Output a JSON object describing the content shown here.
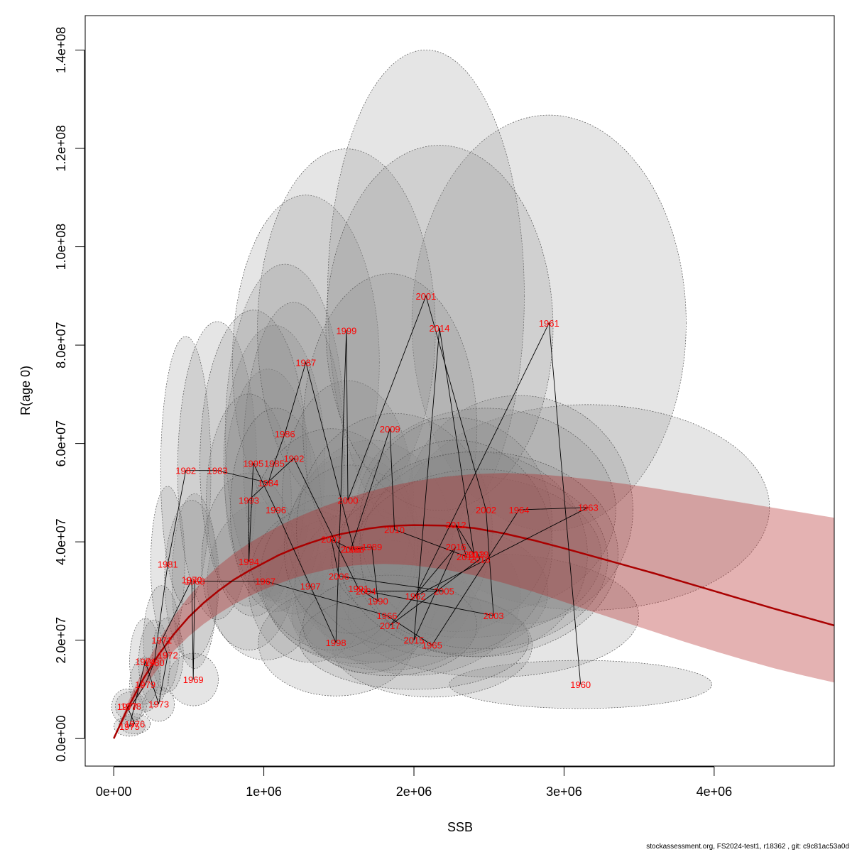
{
  "chart_data": {
    "type": "scatter",
    "xlabel": "SSB",
    "ylabel": "R(age 0)",
    "xlim": [
      -190000,
      4800000
    ],
    "ylim": [
      -5600000,
      147000000
    ],
    "x_ticks": [
      0,
      1000000,
      2000000,
      3000000,
      4000000
    ],
    "x_tick_labels": [
      "0e+00",
      "1e+06",
      "2e+06",
      "3e+06",
      "4e+06"
    ],
    "y_ticks": [
      0,
      20000000,
      40000000,
      60000000,
      80000000,
      100000000,
      120000000,
      140000000
    ],
    "y_tick_labels": [
      "0.0e+00",
      "2.0e+07",
      "4.0e+07",
      "6.0e+07",
      "8.0e+07",
      "1.0e+08",
      "1.2e+08",
      "1.4e+08"
    ],
    "colors": {
      "ellipse_fill": "#888888",
      "curve": "#aa0000",
      "band": "#b22222",
      "labels": "#ff0000",
      "path": "#000000"
    },
    "fitted_curve": {
      "x": [
        0,
        100000,
        200000,
        300000,
        400000,
        500000,
        600000,
        700000,
        800000,
        900000,
        1000000,
        1100000,
        1200000,
        1300000,
        1400000,
        1500000,
        1600000,
        1700000,
        1800000,
        1900000,
        2000000,
        2200000,
        2400000,
        2600000,
        2800000,
        3000000,
        3200000,
        3400000,
        3600000,
        3800000,
        4000000,
        4200000,
        4400000,
        4600000,
        4800000
      ],
      "y": [
        0,
        6600000,
        12300000,
        17100000,
        21200000,
        24700000,
        27600000,
        30100000,
        32300000,
        34100000,
        35700000,
        37300000,
        38600000,
        39700000,
        40700000,
        41500000,
        42100000,
        42700000,
        43100000,
        43300000,
        43400000,
        43300000,
        42800000,
        41700000,
        40300000,
        38700000,
        37000000,
        35300000,
        33600000,
        31800000,
        30000000,
        28200000,
        26400000,
        24700000,
        23000000
      ],
      "lower": [
        0,
        5500000,
        10300000,
        14400000,
        17800000,
        20800000,
        23300000,
        25400000,
        27300000,
        28900000,
        30300000,
        31500000,
        32600000,
        33500000,
        34200000,
        34800000,
        35200000,
        35400000,
        35500000,
        35400000,
        35200000,
        34400000,
        33200000,
        31600000,
        29800000,
        27800000,
        25700000,
        23700000,
        21700000,
        19700000,
        17800000,
        16000000,
        14300000,
        12800000,
        11400000
      ],
      "upper": [
        0,
        7700000,
        14300000,
        19900000,
        24800000,
        28900000,
        32300000,
        35200000,
        37600000,
        39700000,
        41500000,
        43200000,
        44700000,
        46000000,
        47200000,
        48300000,
        49300000,
        50200000,
        51000000,
        51700000,
        52300000,
        53200000,
        53800000,
        54000000,
        53800000,
        53300000,
        52600000,
        51800000,
        50900000,
        49900000,
        48900000,
        47900000,
        46900000,
        45900000,
        44900000
      ]
    },
    "points": [
      {
        "year": "1960",
        "x": 3110000,
        "y": 11000000
      },
      {
        "year": "1961",
        "x": 2900000,
        "y": 84500000
      },
      {
        "year": "1962",
        "x": 2010000,
        "y": 29000000
      },
      {
        "year": "1963",
        "x": 3160000,
        "y": 47000000
      },
      {
        "year": "1964",
        "x": 2700000,
        "y": 46500000
      },
      {
        "year": "1965",
        "x": 2120000,
        "y": 19000000
      },
      {
        "year": "1966",
        "x": 1820000,
        "y": 25000000
      },
      {
        "year": "1967",
        "x": 1010000,
        "y": 32000000
      },
      {
        "year": "1968",
        "x": 540000,
        "y": 32000000
      },
      {
        "year": "1969",
        "x": 530000,
        "y": 12000000
      },
      {
        "year": "1970",
        "x": 520000,
        "y": 32300000
      },
      {
        "year": "1971",
        "x": 320000,
        "y": 20000000
      },
      {
        "year": "1972",
        "x": 360000,
        "y": 17000000
      },
      {
        "year": "1973",
        "x": 300000,
        "y": 7000000
      },
      {
        "year": "1974",
        "x": 210000,
        "y": 15700000
      },
      {
        "year": "1975",
        "x": 105000,
        "y": 2500000
      },
      {
        "year": "1976",
        "x": 140000,
        "y": 3000000
      },
      {
        "year": "1977",
        "x": 90000,
        "y": 6500000
      },
      {
        "year": "1978",
        "x": 115000,
        "y": 6600000
      },
      {
        "year": "1979",
        "x": 210000,
        "y": 11000000
      },
      {
        "year": "1980",
        "x": 270000,
        "y": 15500000
      },
      {
        "year": "1981",
        "x": 360000,
        "y": 35500000
      },
      {
        "year": "1982",
        "x": 480000,
        "y": 54500000
      },
      {
        "year": "1983",
        "x": 690000,
        "y": 54500000
      },
      {
        "year": "1984",
        "x": 1030000,
        "y": 52000000
      },
      {
        "year": "1985",
        "x": 1070000,
        "y": 56000000
      },
      {
        "year": "1986",
        "x": 1140000,
        "y": 62000000
      },
      {
        "year": "1987",
        "x": 1280000,
        "y": 76500000
      },
      {
        "year": "1988",
        "x": 1600000,
        "y": 38500000
      },
      {
        "year": "1989",
        "x": 1720000,
        "y": 39000000
      },
      {
        "year": "1990",
        "x": 1760000,
        "y": 28000000
      },
      {
        "year": "1991",
        "x": 1630000,
        "y": 30500000
      },
      {
        "year": "1992",
        "x": 1200000,
        "y": 57000000
      },
      {
        "year": "1993",
        "x": 900000,
        "y": 48500000
      },
      {
        "year": "1994",
        "x": 900000,
        "y": 36000000
      },
      {
        "year": "1995",
        "x": 930000,
        "y": 56000000
      },
      {
        "year": "1996",
        "x": 1080000,
        "y": 46500000
      },
      {
        "year": "1997",
        "x": 1310000,
        "y": 31000000
      },
      {
        "year": "1998",
        "x": 1480000,
        "y": 19500000
      },
      {
        "year": "1999",
        "x": 1550000,
        "y": 83000000
      },
      {
        "year": "2000",
        "x": 1560000,
        "y": 48500000
      },
      {
        "year": "2001",
        "x": 2080000,
        "y": 90000000
      },
      {
        "year": "2002",
        "x": 2480000,
        "y": 46500000
      },
      {
        "year": "2003",
        "x": 2530000,
        "y": 25000000
      },
      {
        "year": "2004",
        "x": 1680000,
        "y": 30000000
      },
      {
        "year": "2005",
        "x": 2200000,
        "y": 30000000
      },
      {
        "year": "2006",
        "x": 1500000,
        "y": 33000000
      },
      {
        "year": "2007",
        "x": 1450000,
        "y": 40500000
      },
      {
        "year": "2008",
        "x": 1580000,
        "y": 38500000
      },
      {
        "year": "2009",
        "x": 1840000,
        "y": 63000000
      },
      {
        "year": "2010",
        "x": 1870000,
        "y": 42500000
      },
      {
        "year": "2011",
        "x": 2350000,
        "y": 37000000
      },
      {
        "year": "2012",
        "x": 2280000,
        "y": 43500000
      },
      {
        "year": "2013",
        "x": 2400000,
        "y": 37500000
      },
      {
        "year": "2014",
        "x": 2170000,
        "y": 83500000
      },
      {
        "year": "2015",
        "x": 2000000,
        "y": 20000000
      },
      {
        "year": "2016",
        "x": 2280000,
        "y": 39000000
      },
      {
        "year": "2017",
        "x": 1840000,
        "y": 23000000
      },
      {
        "year": "2018",
        "x": 2440000,
        "y": 36500000
      },
      {
        "year": "2019",
        "x": 2430000,
        "y": 37500000
      }
    ],
    "uncertainty_ellipses_note": "one uncertainty ellipse per year, centred on each point",
    "footer": "stockassessment.org, FS2024-test1, r18362 , git: c9c81ac53a0d"
  }
}
